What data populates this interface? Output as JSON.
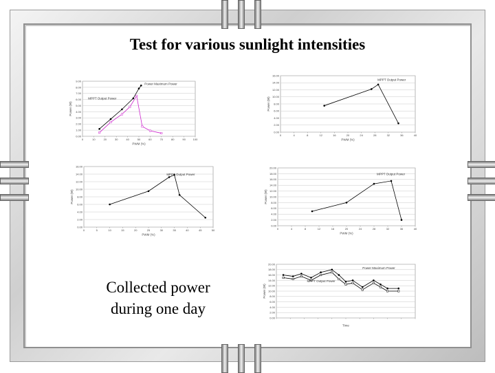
{
  "slide": {
    "title": "Test for various sunlight intensities",
    "caption_line1": "Collected power",
    "caption_line2": "during one day"
  },
  "colors": {
    "ink": "#000000",
    "magenta": "#cc22cc",
    "grid": "#c8c8c8"
  },
  "chart_data": [
    {
      "type": "line",
      "xlabel": "PWM (%)",
      "ylabel": "Power (W)",
      "xlim": [
        0,
        100
      ],
      "ylim": [
        0,
        9
      ],
      "xticks": [
        "0",
        "10",
        "20",
        "30",
        "40",
        "50",
        "60",
        "70",
        "80",
        "90",
        "100"
      ],
      "yticks": [
        "0.00",
        "1.00",
        "2.00",
        "3.00",
        "4.00",
        "5.00",
        "6.00",
        "7.00",
        "8.00",
        "9.00"
      ],
      "series": [
        {
          "name": "Power Maximum Power",
          "color": "#000000",
          "x": [
            15,
            25,
            35,
            45,
            50,
            52
          ],
          "y": [
            1.2,
            2.8,
            4.4,
            6.2,
            7.8,
            8.3
          ]
        },
        {
          "name": "MPPT Output Power",
          "color": "#cc22cc",
          "x": [
            15,
            25,
            35,
            42,
            48,
            53,
            60,
            70
          ],
          "y": [
            0.6,
            2.3,
            3.6,
            4.8,
            6.6,
            1.6,
            0.9,
            0.5
          ]
        }
      ],
      "annotations": [
        "Power Maximum Power",
        "MPPT Output Power"
      ]
    },
    {
      "type": "line",
      "xlabel": "PWM (%)",
      "ylabel": "Power (W)",
      "xlim": [
        0,
        40
      ],
      "ylim": [
        0,
        16
      ],
      "xticks": [
        "0",
        "4",
        "8",
        "12",
        "16",
        "20",
        "24",
        "28",
        "32",
        "36",
        "40"
      ],
      "yticks": [
        "0.00",
        "2.00",
        "4.00",
        "6.00",
        "8.00",
        "10.00",
        "12.00",
        "14.00",
        "16.00"
      ],
      "series": [
        {
          "name": "MPPT Output Power",
          "color": "#000000",
          "x": [
            13,
            27,
            29,
            35
          ],
          "y": [
            7.5,
            12.2,
            13.5,
            2.5
          ]
        }
      ],
      "annotations": [
        "MPPT Output Power"
      ]
    },
    {
      "type": "line",
      "xlabel": "PWM (%)",
      "ylabel": "Power (W)",
      "xlim": [
        0,
        50
      ],
      "ylim": [
        0,
        16
      ],
      "xticks": [
        "0",
        "5",
        "10",
        "15",
        "20",
        "25",
        "30",
        "35",
        "40",
        "45",
        "50"
      ],
      "yticks": [
        "0.00",
        "2.00",
        "4.00",
        "6.00",
        "8.00",
        "10.00",
        "12.00",
        "14.00",
        "16.00"
      ],
      "series": [
        {
          "name": "MPPT Output Power",
          "color": "#000000",
          "x": [
            10,
            25,
            33,
            35,
            37,
            47
          ],
          "y": [
            6.0,
            9.5,
            13.2,
            13.8,
            8.5,
            2.5
          ]
        }
      ],
      "annotations": [
        "MPPT Output Power"
      ]
    },
    {
      "type": "line",
      "xlabel": "PWM (%)",
      "ylabel": "Power (W)",
      "xlim": [
        0,
        40
      ],
      "ylim": [
        0,
        20
      ],
      "xticks": [
        "0",
        "4",
        "8",
        "12",
        "16",
        "20",
        "24",
        "28",
        "32",
        "36",
        "40"
      ],
      "yticks": [
        "0.00",
        "2.00",
        "4.00",
        "6.00",
        "8.00",
        "10.00",
        "12.00",
        "14.00",
        "16.00",
        "18.00",
        "20.00"
      ],
      "series": [
        {
          "name": "MPPT Output Power",
          "color": "#000000",
          "x": [
            10,
            20,
            28,
            33,
            36
          ],
          "y": [
            5.0,
            8.0,
            14.5,
            15.5,
            2.0
          ]
        }
      ],
      "annotations": [
        "MPPT Output Power"
      ]
    },
    {
      "type": "line",
      "xlabel": "Time",
      "ylabel": "Power (W)",
      "xlim": [
        0,
        100
      ],
      "ylim": [
        0,
        20
      ],
      "xticks": [
        "",
        "",
        "",
        "",
        "",
        "",
        "",
        "",
        "",
        "",
        ""
      ],
      "yticks": [
        "0.00",
        "2.00",
        "4.00",
        "6.00",
        "8.00",
        "10.00",
        "12.00",
        "14.00",
        "16.00",
        "18.00",
        "20.00"
      ],
      "series": [
        {
          "name": "Power Maximum Power",
          "color": "#000000",
          "x": [
            5,
            12,
            18,
            25,
            32,
            40,
            45,
            50,
            55,
            62,
            70,
            75,
            80,
            88
          ],
          "y": [
            16.0,
            15.5,
            16.5,
            15.0,
            17.0,
            18.0,
            16.0,
            13.5,
            14.0,
            11.5,
            14.0,
            12.5,
            11.0,
            11.0
          ]
        },
        {
          "name": "MPPT Output Power",
          "color": "#000000",
          "x": [
            5,
            12,
            18,
            25,
            32,
            40,
            45,
            50,
            55,
            62,
            70,
            75,
            80,
            88
          ],
          "y": [
            15.0,
            14.5,
            15.5,
            14.0,
            16.0,
            17.0,
            14.5,
            12.5,
            13.0,
            10.5,
            13.0,
            11.5,
            10.0,
            10.0
          ]
        }
      ],
      "annotations": [
        "Power Maximum Power",
        "MPPT Output Power"
      ]
    }
  ]
}
